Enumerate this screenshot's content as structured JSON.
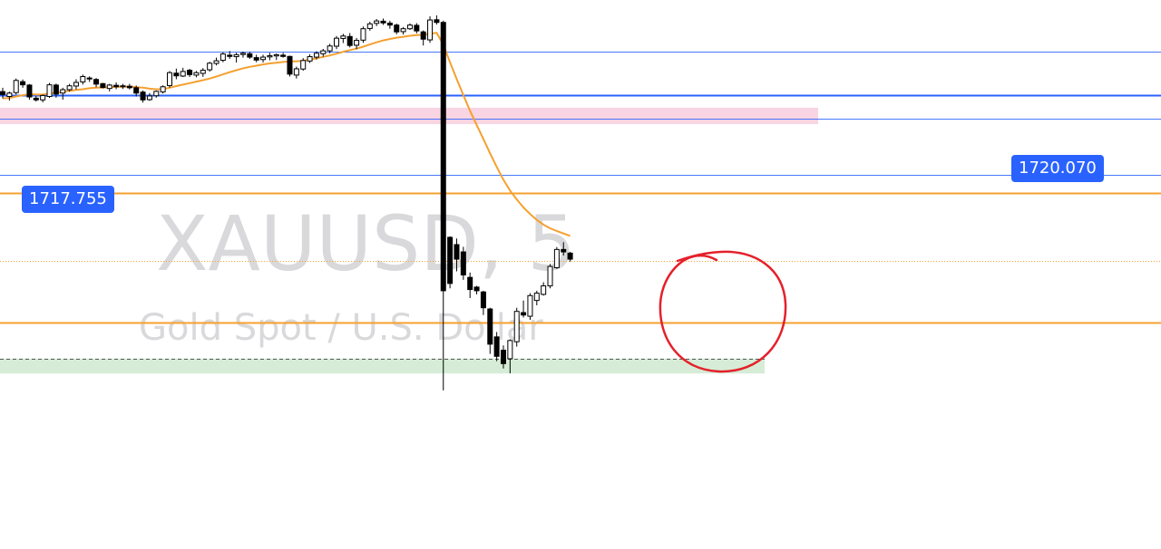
{
  "watermark": {
    "symbol": "XAUUSD, 5",
    "description": "Gold Spot / U.S. Dollar"
  },
  "price_labels": [
    {
      "value": "1717.755",
      "color": "#2962ff"
    },
    {
      "value": "1720.070",
      "color": "#2962ff"
    }
  ],
  "colors": {
    "bull_body": "#ffffff",
    "bear_body": "#000000",
    "wick": "#000000",
    "moving_average": "#f5a030",
    "blue_line": "#2962ff",
    "orange_line": "#f5a030",
    "pink_zone": "#f9d4e2",
    "green_zone": "#d6ecd6",
    "annotation_circle": "#e5202a"
  },
  "chart_data": {
    "type": "candlestick",
    "title": "",
    "xlabel": "",
    "ylabel": "",
    "timeframe": "5",
    "symbol": "XAUUSD",
    "ylim": [
      1705.2,
      1724.6
    ],
    "horizontal_lines": [
      {
        "price": 1722.85,
        "color": "#2962ff",
        "style": "solid-thin"
      },
      {
        "price": 1721.05,
        "color": "#2962ff",
        "style": "solid"
      },
      {
        "price": 1720.07,
        "color": "#2962ff",
        "style": "solid-thin"
      },
      {
        "price": 1717.755,
        "color": "#2962ff",
        "style": "solid-thin"
      },
      {
        "price": 1717.02,
        "color": "#f5a030",
        "style": "solid"
      },
      {
        "price": 1714.24,
        "color": "#f5a030",
        "style": "dotted"
      },
      {
        "price": 1711.68,
        "color": "#f5a030",
        "style": "solid"
      }
    ],
    "zones": [
      {
        "price_top": 1720.35,
        "price_bottom": 1720.05,
        "color": "#f9d4e2",
        "extent": "left-to-mid"
      },
      {
        "price_top": 1710.02,
        "price_bottom": 1709.78,
        "color": "#d6ecd6",
        "extent": "left-to-mid"
      }
    ],
    "candles": [
      [
        1721.2,
        1721.36,
        1720.92,
        1721.08
      ],
      [
        1721.0,
        1721.2,
        1720.83,
        1721.14
      ],
      [
        1721.16,
        1721.74,
        1721.08,
        1721.66
      ],
      [
        1721.61,
        1721.7,
        1721.36,
        1721.48
      ],
      [
        1721.47,
        1721.51,
        1720.87,
        1720.98
      ],
      [
        1720.93,
        1721.02,
        1720.79,
        1720.86
      ],
      [
        1720.86,
        1721.08,
        1720.76,
        1721.04
      ],
      [
        1721.0,
        1721.56,
        1720.94,
        1721.48
      ],
      [
        1721.47,
        1721.53,
        1720.95,
        1721.1
      ],
      [
        1721.14,
        1721.36,
        1720.87,
        1721.28
      ],
      [
        1721.28,
        1721.52,
        1721.2,
        1721.44
      ],
      [
        1721.43,
        1721.71,
        1721.29,
        1721.58
      ],
      [
        1721.6,
        1721.9,
        1721.49,
        1721.82
      ],
      [
        1721.76,
        1721.83,
        1721.6,
        1721.72
      ],
      [
        1721.7,
        1721.76,
        1721.38,
        1721.51
      ],
      [
        1721.53,
        1721.56,
        1721.33,
        1721.37
      ],
      [
        1721.33,
        1721.52,
        1721.21,
        1721.47
      ],
      [
        1721.46,
        1721.58,
        1721.3,
        1721.4
      ],
      [
        1721.4,
        1721.52,
        1721.31,
        1721.44
      ],
      [
        1721.42,
        1721.52,
        1721.29,
        1721.36
      ],
      [
        1721.36,
        1721.45,
        1721.0,
        1721.14
      ],
      [
        1721.18,
        1721.25,
        1720.75,
        1720.86
      ],
      [
        1720.87,
        1721.14,
        1720.82,
        1721.02
      ],
      [
        1721.03,
        1721.25,
        1720.95,
        1721.21
      ],
      [
        1721.19,
        1721.46,
        1721.12,
        1721.4
      ],
      [
        1721.45,
        1722.05,
        1721.37,
        1721.98
      ],
      [
        1721.96,
        1722.15,
        1721.71,
        1721.85
      ],
      [
        1721.84,
        1722.18,
        1721.8,
        1722.03
      ],
      [
        1722.08,
        1722.14,
        1721.8,
        1721.9
      ],
      [
        1721.88,
        1722.05,
        1721.79,
        1721.98
      ],
      [
        1721.95,
        1722.17,
        1721.81,
        1722.08
      ],
      [
        1722.1,
        1722.43,
        1722.02,
        1722.37
      ],
      [
        1722.36,
        1722.6,
        1722.28,
        1722.47
      ],
      [
        1722.49,
        1722.82,
        1722.41,
        1722.75
      ],
      [
        1722.7,
        1722.87,
        1722.55,
        1722.65
      ],
      [
        1722.64,
        1722.8,
        1722.4,
        1722.72
      ],
      [
        1722.73,
        1722.85,
        1722.6,
        1722.78
      ],
      [
        1722.76,
        1722.84,
        1722.55,
        1722.62
      ],
      [
        1722.6,
        1722.72,
        1722.41,
        1722.5
      ],
      [
        1722.52,
        1722.72,
        1722.4,
        1722.62
      ],
      [
        1722.63,
        1722.8,
        1722.49,
        1722.68
      ],
      [
        1722.67,
        1722.77,
        1722.5,
        1722.72
      ],
      [
        1722.7,
        1722.8,
        1722.6,
        1722.65
      ],
      [
        1722.65,
        1722.68,
        1721.82,
        1721.92
      ],
      [
        1721.88,
        1722.23,
        1721.74,
        1722.14
      ],
      [
        1722.13,
        1722.58,
        1722.06,
        1722.48
      ],
      [
        1722.46,
        1722.74,
        1722.38,
        1722.64
      ],
      [
        1722.62,
        1722.86,
        1722.52,
        1722.78
      ],
      [
        1722.76,
        1722.96,
        1722.64,
        1722.88
      ],
      [
        1722.88,
        1723.17,
        1722.78,
        1723.08
      ],
      [
        1723.07,
        1723.49,
        1722.95,
        1723.4
      ],
      [
        1723.39,
        1723.58,
        1723.2,
        1723.49
      ],
      [
        1723.47,
        1723.61,
        1723.02,
        1723.1
      ],
      [
        1723.11,
        1723.41,
        1722.95,
        1723.31
      ],
      [
        1723.32,
        1723.88,
        1723.21,
        1723.79
      ],
      [
        1723.8,
        1724.08,
        1723.71,
        1723.99
      ],
      [
        1724.01,
        1724.19,
        1723.9,
        1724.11
      ],
      [
        1724.1,
        1724.21,
        1723.95,
        1724.03
      ],
      [
        1724.02,
        1724.12,
        1723.79,
        1723.94
      ],
      [
        1723.94,
        1724.0,
        1723.56,
        1723.66
      ],
      [
        1723.67,
        1723.86,
        1723.55,
        1723.79
      ],
      [
        1723.79,
        1724.01,
        1723.74,
        1723.94
      ],
      [
        1723.93,
        1724.02,
        1723.6,
        1723.7
      ],
      [
        1723.66,
        1723.72,
        1723.1,
        1723.36
      ],
      [
        1723.33,
        1724.3,
        1723.21,
        1724.15
      ],
      [
        1724.16,
        1724.34,
        1723.96,
        1724.05
      ],
      [
        1724.05,
        1724.12,
        1708.9,
        1713.0
      ],
      [
        1715.2,
        1715.24,
        1713.1,
        1713.3
      ],
      [
        1714.9,
        1715.15,
        1713.8,
        1714.3
      ],
      [
        1714.6,
        1714.81,
        1713.45,
        1713.65
      ],
      [
        1713.55,
        1713.75,
        1712.7,
        1713.05
      ],
      [
        1713.15,
        1713.2,
        1712.85,
        1713.0
      ],
      [
        1712.95,
        1713.0,
        1712.0,
        1712.3
      ],
      [
        1712.25,
        1712.3,
        1710.4,
        1710.8
      ],
      [
        1711.1,
        1711.3,
        1710.1,
        1710.3
      ],
      [
        1710.55,
        1710.75,
        1709.8,
        1710.0
      ],
      [
        1710.2,
        1711.0,
        1709.6,
        1710.95
      ],
      [
        1710.9,
        1712.3,
        1710.7,
        1712.15
      ],
      [
        1712.1,
        1712.6,
        1711.9,
        1712.0
      ],
      [
        1711.95,
        1712.9,
        1711.8,
        1712.8
      ],
      [
        1712.6,
        1713.0,
        1712.4,
        1712.9
      ],
      [
        1712.85,
        1713.35,
        1712.8,
        1713.2
      ],
      [
        1713.2,
        1714.1,
        1713.1,
        1714.0
      ],
      [
        1713.95,
        1714.8,
        1713.9,
        1714.7
      ],
      [
        1714.7,
        1715.0,
        1714.45,
        1714.6
      ],
      [
        1714.55,
        1714.6,
        1714.2,
        1714.3
      ]
    ],
    "moving_average": [
      1720.92,
      1720.94,
      1721.0,
      1721.05,
      1721.1,
      1721.08,
      1721.08,
      1721.13,
      1721.15,
      1721.19,
      1721.23,
      1721.27,
      1721.3,
      1721.34,
      1721.36,
      1721.37,
      1721.38,
      1721.4,
      1721.4,
      1721.41,
      1721.38,
      1721.36,
      1721.32,
      1721.3,
      1721.3,
      1721.36,
      1721.43,
      1721.49,
      1721.55,
      1721.61,
      1721.67,
      1721.74,
      1721.82,
      1721.91,
      1722.0,
      1722.08,
      1722.16,
      1722.22,
      1722.27,
      1722.32,
      1722.36,
      1722.39,
      1722.42,
      1722.44,
      1722.45,
      1722.47,
      1722.52,
      1722.57,
      1722.63,
      1722.69,
      1722.76,
      1722.84,
      1722.91,
      1722.97,
      1723.05,
      1723.14,
      1723.23,
      1723.31,
      1723.37,
      1723.42,
      1723.46,
      1723.5,
      1723.53,
      1723.54,
      1723.58,
      1723.62,
      1723.13,
      1722.41,
      1721.72,
      1721.06,
      1720.41,
      1719.82,
      1719.25,
      1718.66,
      1718.1,
      1717.57,
      1717.12,
      1716.76,
      1716.43,
      1716.16,
      1715.92,
      1715.72,
      1715.57,
      1715.46,
      1715.36,
      1715.26
    ]
  }
}
